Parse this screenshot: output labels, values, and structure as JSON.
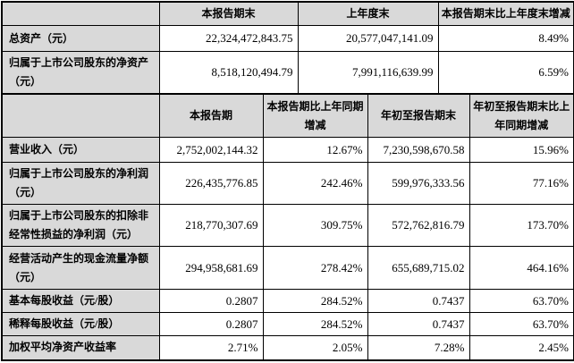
{
  "colors": {
    "header_bg": "#d9d9d9",
    "cell_bg": "#ffffff",
    "border": "#000000",
    "text": "#000000"
  },
  "table1": {
    "headers": [
      "",
      "本报告期末",
      "上年度末",
      "本报告期末比上年度末增减"
    ],
    "rows": [
      {
        "label": "总资产（元）",
        "values": [
          "22,324,472,843.75",
          "20,577,047,141.09",
          "8.49%"
        ]
      },
      {
        "label": "归属于上市公司股东的净资产（元）",
        "values": [
          "8,518,120,494.79",
          "7,991,116,639.99",
          "6.59%"
        ]
      }
    ]
  },
  "table2": {
    "headers": [
      "",
      "本报告期",
      "本报告期比上年同期增减",
      "年初至报告期末",
      "年初至报告期末比上年同期增减"
    ],
    "rows": [
      {
        "label": "营业收入（元）",
        "values": [
          "2,752,002,144.32",
          "12.67%",
          "7,230,598,670.58",
          "15.96%"
        ]
      },
      {
        "label": "归属于上市公司股东的净利润（元）",
        "values": [
          "226,435,776.85",
          "242.46%",
          "599,976,333.56",
          "77.16%"
        ]
      },
      {
        "label": "归属于上市公司股东的扣除非经常性损益的净利润（元）",
        "values": [
          "218,770,307.69",
          "309.75%",
          "572,762,816.79",
          "173.70%"
        ]
      },
      {
        "label": "经营活动产生的现金流量净额（元）",
        "values": [
          "294,958,681.69",
          "278.42%",
          "655,689,715.02",
          "464.16%"
        ]
      },
      {
        "label": "基本每股收益（元/股）",
        "values": [
          "0.2807",
          "284.52%",
          "0.7437",
          "63.70%"
        ]
      },
      {
        "label": "稀释每股收益（元/股）",
        "values": [
          "0.2807",
          "284.52%",
          "0.7437",
          "63.70%"
        ]
      },
      {
        "label": "加权平均净资产收益率",
        "values": [
          "2.71%",
          "2.05%",
          "7.28%",
          "2.45%"
        ]
      }
    ]
  }
}
